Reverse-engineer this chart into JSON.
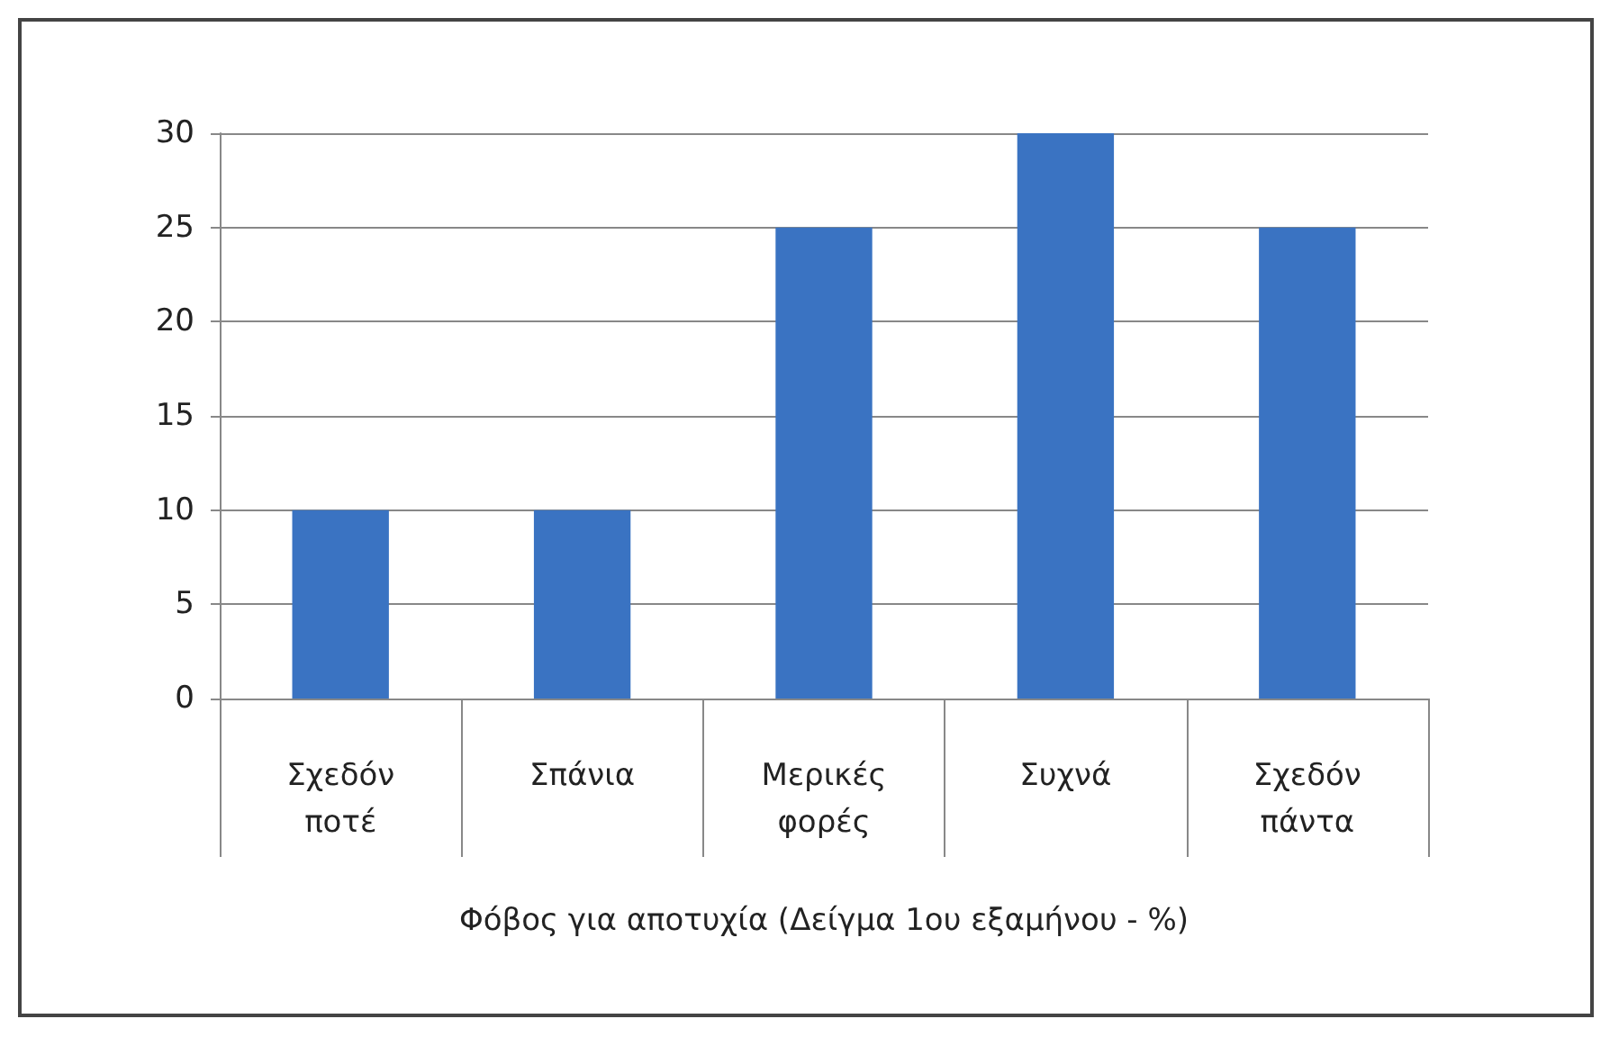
{
  "chart_data": {
    "type": "bar",
    "xlabel": "Φόβος για αποτυχία (Δείγμα 1ου εξαμήνου - %)",
    "categories": [
      "Σχεδόν ποτέ",
      "Σπάνια",
      "Μερικές φορές",
      "Συχνά",
      "Σχεδόν πάντα"
    ],
    "values": [
      10,
      10,
      25,
      30,
      25
    ],
    "color": "#3a73c2",
    "ylim": [
      0,
      30
    ],
    "yticks": [
      0,
      5,
      10,
      15,
      20,
      25,
      30
    ],
    "grid": "y"
  }
}
